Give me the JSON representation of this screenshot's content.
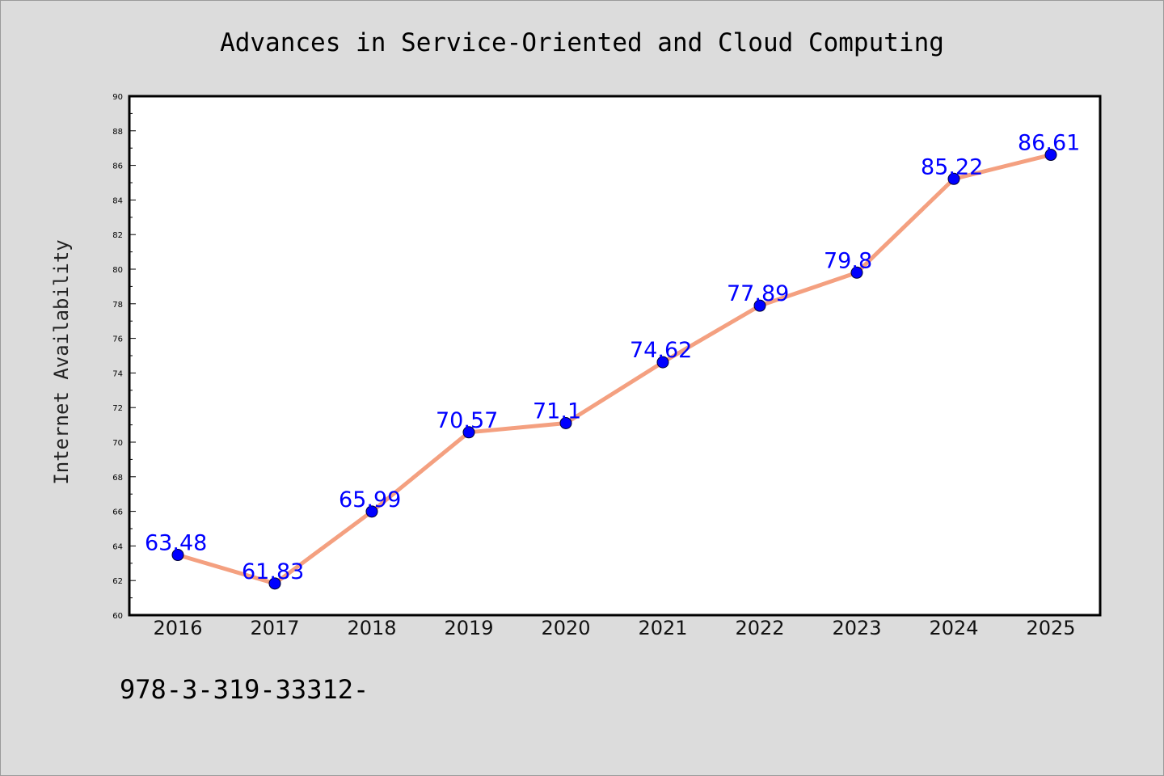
{
  "chart_data": {
    "type": "line",
    "title": "Advances in Service-Oriented and Cloud Computing",
    "xlabel": "",
    "ylabel": "Internet Availability",
    "categories": [
      "2016",
      "2017",
      "2018",
      "2019",
      "2020",
      "2021",
      "2022",
      "2023",
      "2024",
      "2025"
    ],
    "values": [
      63.48,
      61.83,
      65.99,
      70.57,
      71.1,
      74.62,
      77.89,
      79.8,
      85.22,
      86.61
    ],
    "data_labels": [
      "63.48",
      "61.83",
      "65.99",
      "70.57",
      "71.1",
      "74.62",
      "77.89",
      "79.8",
      "85.22",
      "86.61"
    ],
    "ylim": [
      60,
      90
    ],
    "yticks": [
      60,
      62,
      64,
      66,
      68,
      70,
      72,
      74,
      76,
      78,
      80,
      82,
      84,
      86,
      88,
      90
    ],
    "grid": false,
    "legend": "none",
    "line_color": "#f4a080",
    "marker_color": "#0000ff",
    "label_color": "#0000ff"
  },
  "footer": {
    "text": "978-3-319-33312-"
  }
}
